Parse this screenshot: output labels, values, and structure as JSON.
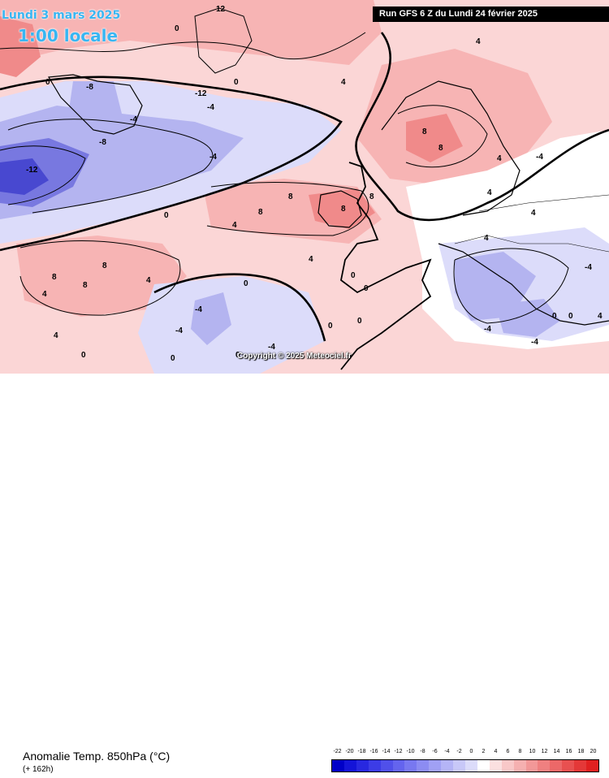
{
  "header": {
    "date_label": "Lundi 3 mars 2025",
    "time_label": "1:00 locale",
    "run_label": "Run GFS 6 Z du Lundi 24 février 2025"
  },
  "map": {
    "copyright": "Copyright © 2025 Meteociel.fr",
    "contour_labels": [
      "12",
      "0",
      "0",
      "-8",
      "-12",
      "-4",
      "-4",
      "0",
      "-4",
      "0",
      "-8",
      "-12",
      "4",
      "4",
      "4",
      "4",
      "8",
      "8",
      "8",
      "8",
      "8",
      "8",
      "4",
      "4",
      "4",
      "4",
      "4",
      "0",
      "0",
      "-4",
      "8",
      "8",
      "8",
      "0",
      "0",
      "4",
      "0",
      "-4",
      "4",
      "-4",
      "4",
      "-4",
      "-4",
      "0",
      "-4",
      "0",
      "0",
      "-4",
      "0",
      "0"
    ],
    "colors": {
      "warm_strong": "#f08a8a",
      "warm_medium": "#f7b4b4",
      "warm_light": "#fbd6d6",
      "neutral": "#ffffff",
      "cold_light": "#dcdcfa",
      "cold_medium": "#b4b4f0",
      "cold_strong": "#7878e0",
      "cold_deep": "#4848d0"
    }
  },
  "footer": {
    "parameter_label": "Anomalie Temp. 850hPa (°C)",
    "forecast_hour": "(+ 162h)"
  },
  "legend": {
    "ticks": [
      "-22",
      "-20",
      "-18",
      "-16",
      "-14",
      "-12",
      "-10",
      "-8",
      "-6",
      "-4",
      "-2",
      "0",
      "2",
      "4",
      "6",
      "8",
      "10",
      "12",
      "14",
      "16",
      "18",
      "20"
    ],
    "colors": [
      "#0000c8",
      "#1414d8",
      "#2828e0",
      "#3c3ce6",
      "#5050ea",
      "#6464ee",
      "#7878f0",
      "#8c8cf2",
      "#a0a0f4",
      "#b4b4f6",
      "#c8c8f8",
      "#dcdcfa",
      "#ffffff",
      "#fbe0e0",
      "#f8c8c8",
      "#f5b0b0",
      "#f29898",
      "#ef8080",
      "#ec6868",
      "#e85050",
      "#e43838",
      "#e02020"
    ]
  }
}
